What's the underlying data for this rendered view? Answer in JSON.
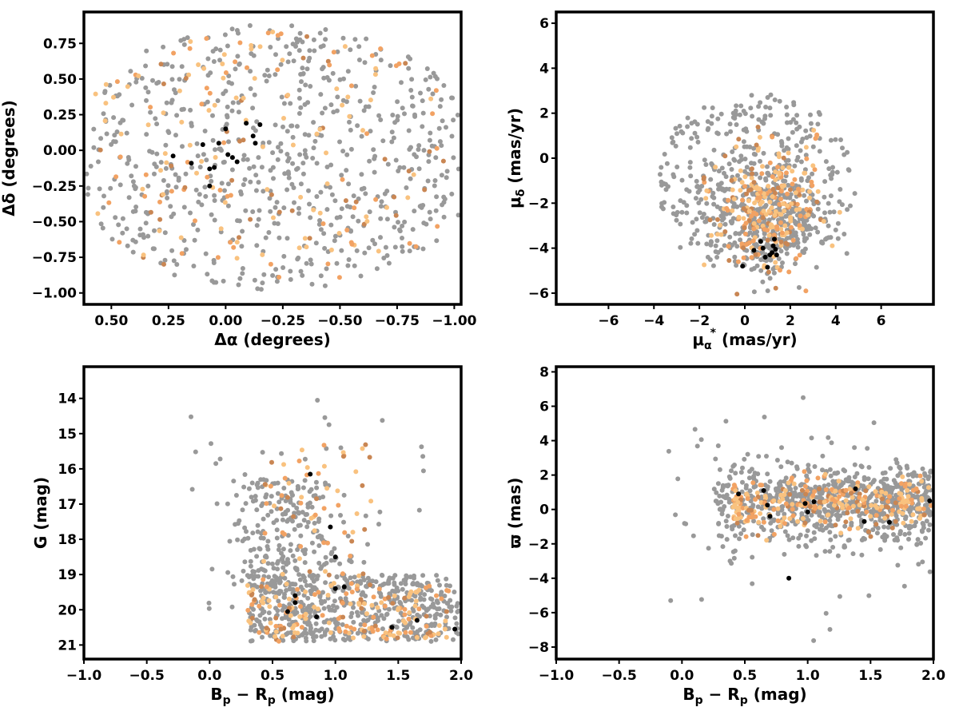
{
  "colors": {
    "field": "#999999",
    "member_light": "#f9c27f",
    "member_mid": "#f2a263",
    "member_dark": "#c98653",
    "core": "#000000"
  },
  "chart_data": [
    {
      "type": "scatter",
      "id": "sky",
      "xlabel_main": "Δα (degrees)",
      "ylabel_main": "Δδ (degrees)",
      "xlim": [
        0.62,
        -1.03
      ],
      "ylim": [
        -1.08,
        0.97
      ],
      "x_inverted": true,
      "xticks": [
        0.5,
        0.25,
        0.0,
        -0.25,
        -0.5,
        -0.75,
        -1.0
      ],
      "xtick_labels": [
        "0.50",
        "0.25",
        "0.00",
        "−0.25",
        "−0.50",
        "−0.75",
        "−1.00"
      ],
      "yticks": [
        -1.0,
        -0.75,
        -0.5,
        -0.25,
        0.0,
        0.25,
        0.5,
        0.75
      ],
      "ytick_labels": [
        "−1.00",
        "−0.75",
        "−0.50",
        "−0.25",
        "0.00",
        "0.25",
        "0.50",
        "0.75"
      ],
      "grid": false,
      "series": [
        {
          "role": "field",
          "color": "#999999",
          "count": 700,
          "distribution": "uniform disk, center (-0.2, -0.05), radius 0.93"
        },
        {
          "role": "members",
          "colors": [
            "#f9c27f",
            "#f2a263",
            "#c98653"
          ],
          "count": 190,
          "distribution": "same footprint as field stars"
        },
        {
          "role": "core",
          "points": [
            [
              0.23,
              -0.04
            ],
            [
              0.15,
              -0.09
            ],
            [
              0.1,
              0.04
            ],
            [
              0.07,
              -0.13
            ],
            [
              0.05,
              -0.12
            ],
            [
              0.03,
              0.05
            ],
            [
              0.0,
              0.15
            ],
            [
              -0.03,
              -0.05
            ],
            [
              -0.05,
              -0.08
            ],
            [
              -0.09,
              0.19
            ],
            [
              -0.12,
              0.1
            ],
            [
              -0.13,
              0.05
            ],
            [
              -0.15,
              0.18
            ],
            [
              0.07,
              -0.25
            ],
            [
              -0.01,
              -0.03
            ]
          ]
        }
      ]
    },
    {
      "type": "scatter",
      "id": "proper-motion",
      "xlabel_main": "μ",
      "xlabel_sub": "α",
      "xlabel_sup": "*",
      "xlabel_units": " (mas/yr)",
      "ylabel_main": "μ",
      "ylabel_sub": "δ",
      "ylabel_units": " (mas/yr)",
      "xlim": [
        -8.3,
        8.3
      ],
      "ylim": [
        -6.5,
        6.5
      ],
      "xticks": [
        -6,
        -4,
        -2,
        0,
        2,
        4,
        6
      ],
      "xtick_labels": [
        "−6",
        "−4",
        "−2",
        "0",
        "2",
        "4",
        "6"
      ],
      "yticks": [
        -6,
        -4,
        -2,
        0,
        2,
        4,
        6
      ],
      "ytick_labels": [
        "−6",
        "−4",
        "−2",
        "0",
        "2",
        "4",
        "6"
      ],
      "grid": false,
      "series": [
        {
          "role": "field",
          "color": "#999999",
          "count": 700,
          "distribution": "disk centered (0.5, -1.0), radius 4.4, density highest toward (1, -2.5)"
        },
        {
          "role": "members",
          "colors": [
            "#f9c27f",
            "#f2a263",
            "#c98653"
          ],
          "count": 260,
          "distribution": "concentrated around (1.0, -2.3), spread 1.5 x 1.6"
        },
        {
          "role": "core",
          "points": [
            [
              -0.1,
              -4.8
            ],
            [
              0.4,
              -4.1
            ],
            [
              0.7,
              -3.7
            ],
            [
              0.9,
              -4.4
            ],
            [
              1.0,
              -4.85
            ],
            [
              1.1,
              -4.3
            ],
            [
              1.2,
              -4.2
            ],
            [
              1.25,
              -3.9
            ],
            [
              1.3,
              -3.6
            ],
            [
              1.35,
              -4.05
            ],
            [
              1.4,
              -4.3
            ],
            [
              0.8,
              -4.0
            ]
          ]
        }
      ]
    },
    {
      "type": "scatter",
      "id": "cmd",
      "xlabel_main": "B",
      "xlabel_sub1": "p",
      "xlabel_mid": " − R",
      "xlabel_sub2": "p",
      "xlabel_units": " (mag)",
      "ylabel_main": "G (mag)",
      "xlim": [
        -1.0,
        2.0
      ],
      "ylim": [
        21.4,
        13.1
      ],
      "y_inverted": true,
      "xticks": [
        -1.0,
        -0.5,
        0.0,
        0.5,
        1.0,
        1.5,
        2.0
      ],
      "xtick_labels": [
        "−1.0",
        "−0.5",
        "0.0",
        "0.5",
        "1.0",
        "1.5",
        "2.0"
      ],
      "yticks": [
        21,
        20,
        19,
        18,
        17,
        16,
        15,
        14
      ],
      "ytick_labels": [
        "21",
        "20",
        "19",
        "18",
        "17",
        "16",
        "15",
        "14"
      ],
      "grid": false,
      "series": [
        {
          "role": "field",
          "color": "#999999",
          "count": 800,
          "distribution": "dense band at G 19-21 across colour 0.3-2.0, tail toward G 16-18 at colour 0.6-1.2"
        },
        {
          "role": "members",
          "colors": [
            "#f9c27f",
            "#f2a263",
            "#c98653"
          ],
          "count": 240,
          "distribution": "mostly colour 0.3-1.2, G 19-21, plus sparse brighter stars"
        },
        {
          "role": "core",
          "points": [
            [
              0.62,
              20.05
            ],
            [
              0.68,
              19.8
            ],
            [
              0.68,
              19.6
            ],
            [
              0.8,
              16.15
            ],
            [
              0.96,
              17.65
            ],
            [
              1.0,
              19.4
            ],
            [
              1.0,
              18.5
            ],
            [
              1.07,
              19.35
            ],
            [
              1.45,
              20.5
            ],
            [
              1.65,
              20.3
            ],
            [
              1.95,
              20.55
            ],
            [
              0.85,
              20.2
            ]
          ]
        }
      ]
    },
    {
      "type": "scatter",
      "id": "parallax",
      "xlabel_main": "B",
      "xlabel_sub1": "p",
      "xlabel_mid": " − R",
      "xlabel_sub2": "p",
      "xlabel_units": " (mag)",
      "ylabel_main": "ϖ (mas)",
      "xlim": [
        -1.0,
        2.0
      ],
      "ylim": [
        -8.7,
        8.3
      ],
      "xticks": [
        -1.0,
        -0.5,
        0.0,
        0.5,
        1.0,
        1.5,
        2.0
      ],
      "xtick_labels": [
        "−1.0",
        "−0.5",
        "0.0",
        "0.5",
        "1.0",
        "1.5",
        "2.0"
      ],
      "yticks": [
        -8,
        -6,
        -4,
        -2,
        0,
        2,
        4,
        6,
        8
      ],
      "ytick_labels": [
        "−8",
        "−6",
        "−4",
        "−2",
        "0",
        "2",
        "4",
        "6",
        "8"
      ],
      "grid": false,
      "series": [
        {
          "role": "field",
          "color": "#999999",
          "count": 800,
          "distribution": "horizontal band centred on ϖ 0.3 across colour 0.2-2.0, scatter about ±1.2 mas with outliers"
        },
        {
          "role": "members",
          "colors": [
            "#f9c27f",
            "#f2a263",
            "#c98653"
          ],
          "count": 260,
          "distribution": "colour 0.4-2.0, ϖ -1 to 1.5"
        },
        {
          "role": "core",
          "points": [
            [
              0.45,
              0.9
            ],
            [
              0.65,
              1.1
            ],
            [
              0.68,
              0.25
            ],
            [
              0.7,
              -0.4
            ],
            [
              0.85,
              -4.0
            ],
            [
              0.98,
              0.35
            ],
            [
              1.0,
              -0.15
            ],
            [
              1.05,
              0.45
            ],
            [
              1.38,
              1.2
            ],
            [
              1.45,
              -0.7
            ],
            [
              1.65,
              -0.75
            ],
            [
              1.97,
              0.5
            ]
          ]
        }
      ]
    }
  ]
}
